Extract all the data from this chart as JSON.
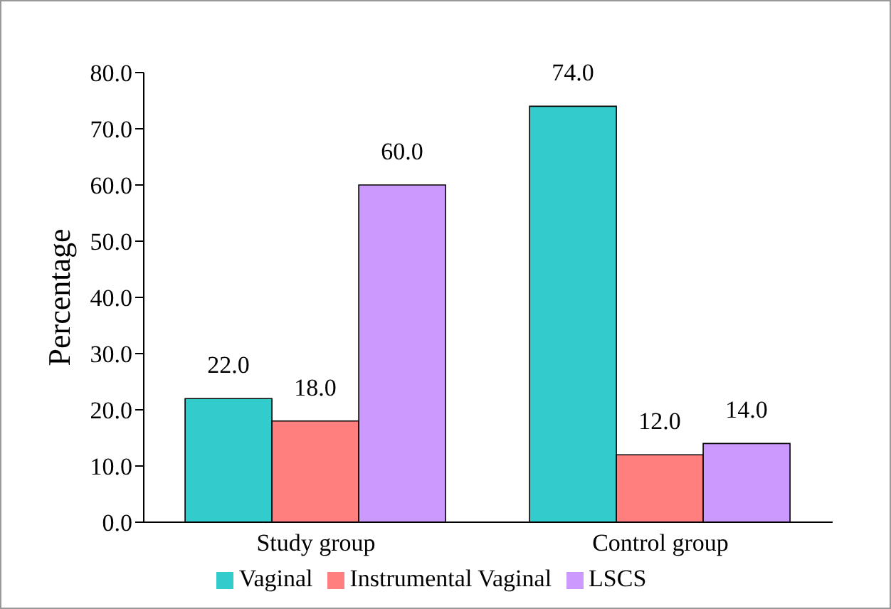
{
  "chart_data": {
    "type": "bar",
    "ylabel": "Percentage",
    "categories": [
      "Study group",
      "Control group"
    ],
    "series": [
      {
        "name": "Vaginal",
        "color": "#33cccc",
        "values": [
          22,
          74
        ],
        "value_labels": [
          "22.0",
          "74.0"
        ]
      },
      {
        "name": "Instrumental Vaginal",
        "color": "#ff7f7f",
        "values": [
          18,
          12
        ],
        "value_labels": [
          "18.0",
          "12.0"
        ]
      },
      {
        "name": "LSCS",
        "color": "#cc99ff",
        "values": [
          60,
          14
        ],
        "value_labels": [
          "60.0",
          "14.0"
        ]
      }
    ],
    "ylim": [
      0,
      80
    ],
    "yticks": [
      {
        "value": 0,
        "label": "0.0"
      },
      {
        "value": 10,
        "label": "10.0"
      },
      {
        "value": 20,
        "label": "20.0"
      },
      {
        "value": 30,
        "label": "30.0"
      },
      {
        "value": 40,
        "label": "40.0"
      },
      {
        "value": 50,
        "label": "50.0"
      },
      {
        "value": 60,
        "label": "60.0"
      },
      {
        "value": 70,
        "label": "70.0"
      },
      {
        "value": 80,
        "label": "80.0"
      }
    ],
    "grid": false,
    "legend": "bottom"
  }
}
